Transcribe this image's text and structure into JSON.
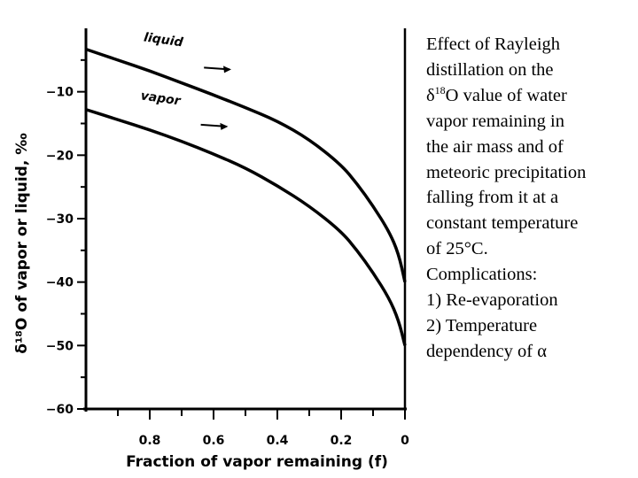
{
  "chart_data": {
    "type": "line",
    "xlabel": "Fraction of vapor remaining (f)",
    "ylabel": "δ¹⁸O of vapor or liquid, ‰",
    "xlim": [
      1,
      0
    ],
    "ylim": [
      -60,
      0
    ],
    "x_ticks": [
      0.8,
      0.6,
      0.4,
      0.2,
      0
    ],
    "x_tick_labels": [
      "0.8",
      "0.6",
      "0.4",
      "0.2",
      "0"
    ],
    "y_ticks": [
      -10,
      -20,
      -30,
      -40,
      -50,
      -60
    ],
    "y_tick_labels": [
      "−10",
      "−20",
      "−30",
      "−40",
      "−50",
      "−60"
    ],
    "grid": false,
    "series": [
      {
        "name": "liquid",
        "x": [
          1.0,
          0.9,
          0.8,
          0.7,
          0.6,
          0.5,
          0.4,
          0.3,
          0.2,
          0.15,
          0.1,
          0.05,
          0.02,
          0.0
        ],
        "y": [
          -3.3,
          -5.0,
          -6.7,
          -8.6,
          -10.5,
          -12.5,
          -14.6,
          -17.5,
          -21.5,
          -24.5,
          -28.0,
          -32.0,
          -35.5,
          -40.0
        ]
      },
      {
        "name": "vapor",
        "x": [
          1.0,
          0.9,
          0.8,
          0.7,
          0.6,
          0.5,
          0.4,
          0.3,
          0.2,
          0.15,
          0.1,
          0.05,
          0.02,
          0.0
        ],
        "y": [
          -12.8,
          -14.4,
          -16.0,
          -17.8,
          -19.8,
          -22.0,
          -24.8,
          -28.0,
          -32.0,
          -35.0,
          -38.5,
          -42.5,
          -46.0,
          -50.0
        ]
      }
    ]
  },
  "caption": {
    "lines": [
      "Effect of Rayleigh",
      "distillation on the"
    ],
    "delta_symbol": "δ",
    "superscript": "18",
    "line3_rest": "O value of water",
    "lines_after": [
      "vapor remaining in",
      "the air mass and of",
      "meteoric precipitation",
      "falling from it at a",
      "constant temperature",
      "of 25°C.",
      "Complications:",
      "1) Re-evaporation",
      "2) Temperature"
    ],
    "last_line_text": "dependency of",
    "alpha_symbol": "α"
  }
}
